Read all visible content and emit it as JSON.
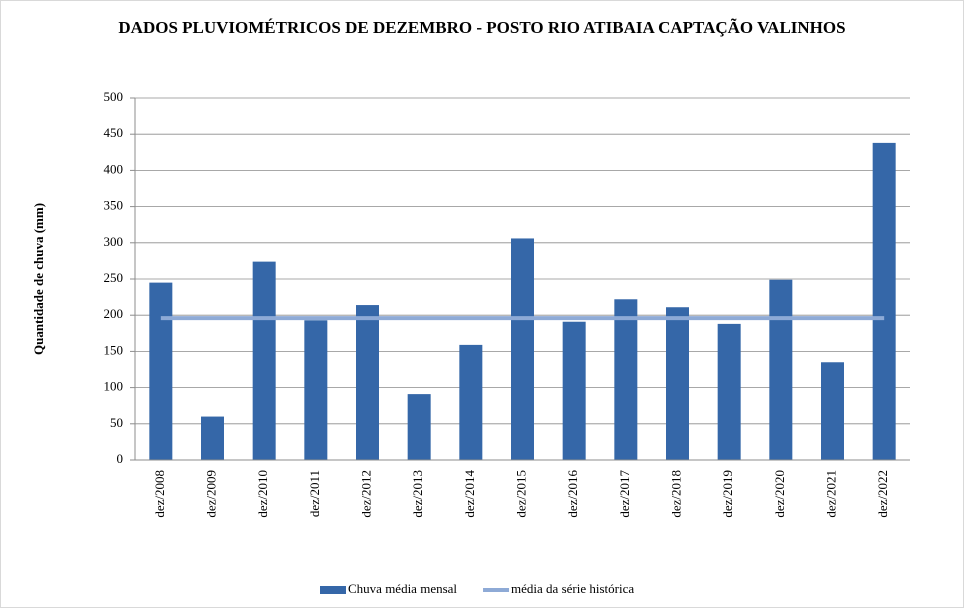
{
  "chart_data": {
    "type": "bar",
    "title": "DADOS PLUVIOMÉTRICOS  DE DEZEMBRO - POSTO RIO ATIBAIA  CAPTAÇÃO VALINHOS",
    "y_label": "Quantidade  de  chuva  (mm)",
    "categories": [
      "dez/2008",
      "dez/2009",
      "dez/2010",
      "dez/2011",
      "dez/2012",
      "dez/2013",
      "dez/2014",
      "dez/2015",
      "dez/2016",
      "dez/2017",
      "dez/2018",
      "dez/2019",
      "dez/2020",
      "dez/2021",
      "dez/2022"
    ],
    "series": [
      {
        "name": "Chuva média mensal",
        "type": "bar",
        "color": "#3567a8",
        "values": [
          245,
          60,
          274,
          193,
          214,
          91,
          159,
          306,
          191,
          222,
          211,
          188,
          249,
          135,
          438
        ]
      },
      {
        "name": "média da série histórica",
        "type": "line",
        "color": "#8eaad6",
        "values": [
          196,
          196,
          196,
          196,
          196,
          196,
          196,
          196,
          196,
          196,
          196,
          196,
          196,
          196,
          196
        ]
      }
    ],
    "ylim": [
      0,
      500
    ],
    "yticks": [
      0,
      50,
      100,
      150,
      200,
      250,
      300,
      350,
      400,
      450,
      500
    ],
    "grid": true,
    "legend": "bottom"
  }
}
